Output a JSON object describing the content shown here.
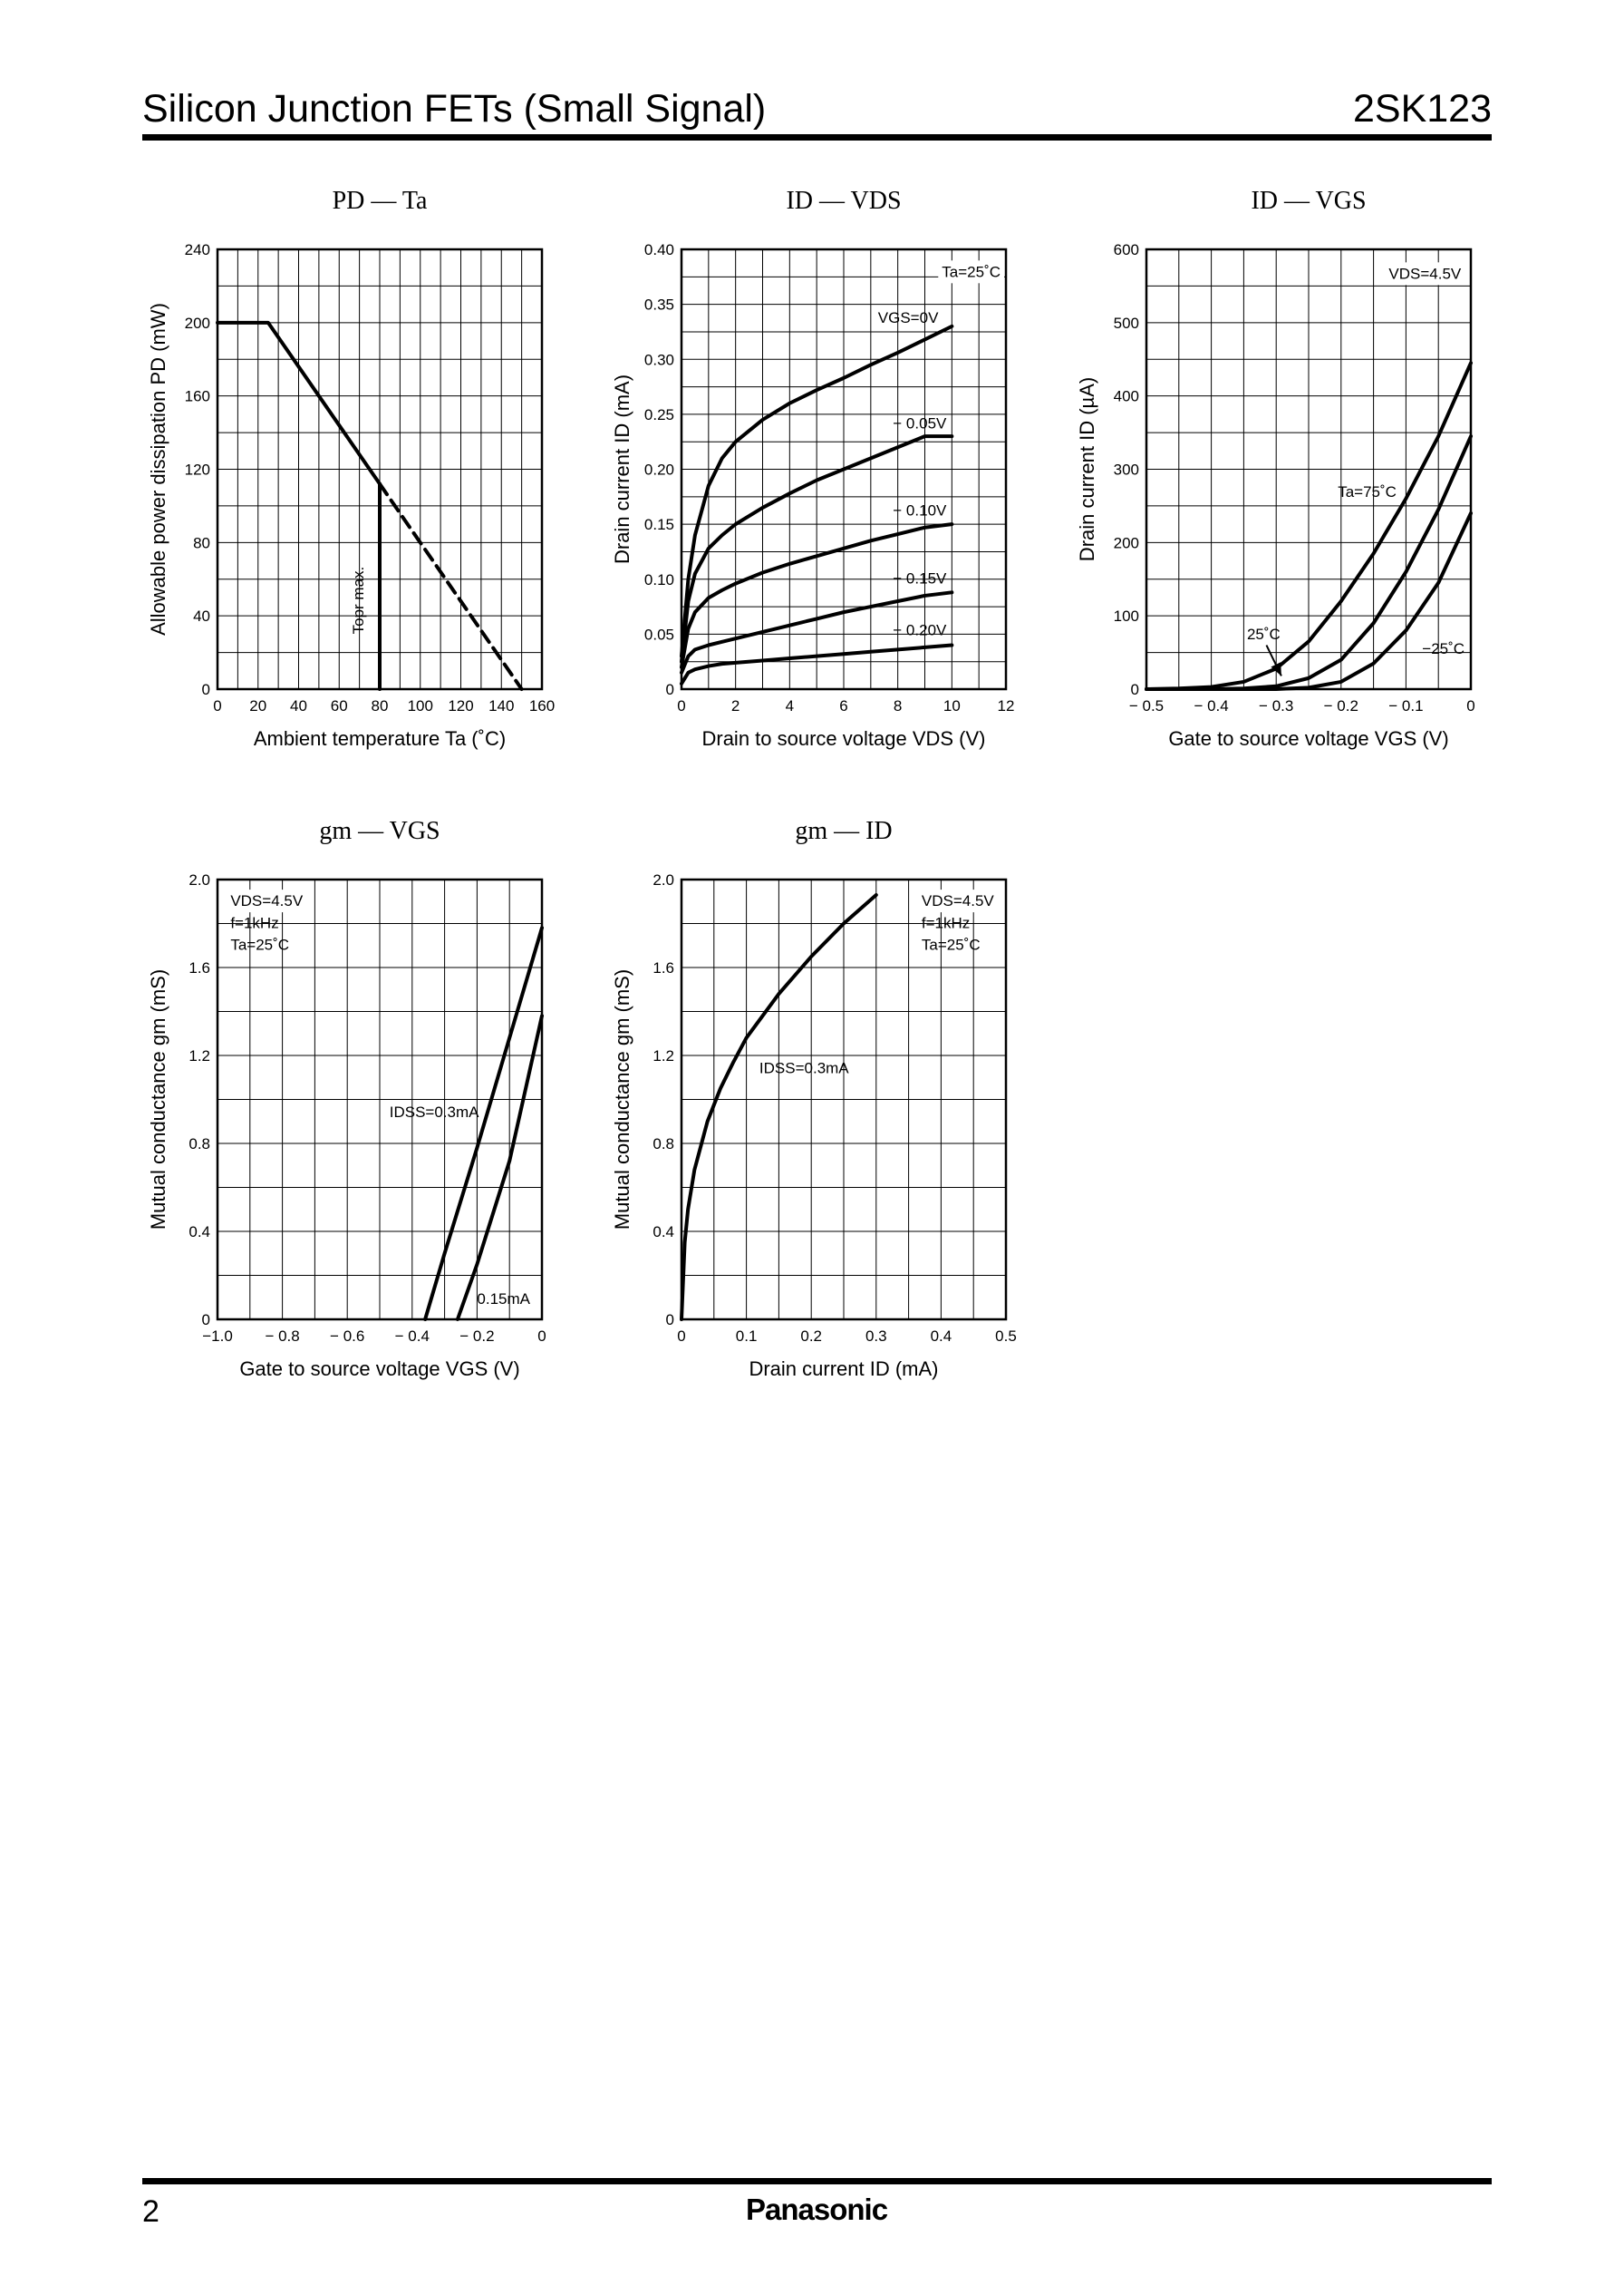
{
  "header": {
    "title": "Silicon Junction FETs (Small Signal)",
    "part_number": "2SK123"
  },
  "footer": {
    "page_number": "2",
    "brand": "Panasonic"
  },
  "chart_data": [
    {
      "type": "line",
      "title": "PD — Ta",
      "xlabel": "Ambient temperature   Ta   (˚C)",
      "ylabel": "Allowable power dissipation   PD   (mW)",
      "xlim": [
        0,
        160
      ],
      "ylim": [
        0,
        240
      ],
      "xticks": [
        0,
        20,
        40,
        60,
        80,
        100,
        120,
        140,
        160
      ],
      "yticks": [
        0,
        40,
        80,
        120,
        160,
        200,
        240
      ],
      "grid_x": [
        10,
        20,
        30,
        40,
        50,
        60,
        70,
        80,
        90,
        100,
        110,
        120,
        130,
        140,
        150
      ],
      "grid_y": [
        20,
        40,
        60,
        80,
        100,
        120,
        140,
        160,
        180,
        200,
        220
      ],
      "series": [
        {
          "style": "solid",
          "x": [
            0,
            25,
            80
          ],
          "y": [
            200,
            200,
            112
          ]
        },
        {
          "style": "dashed",
          "x": [
            80,
            150
          ],
          "y": [
            112,
            0
          ]
        },
        {
          "style": "solid",
          "x": [
            80,
            80
          ],
          "y": [
            112,
            0
          ]
        }
      ],
      "annotations": [
        {
          "text": "Topr max.",
          "x": 72,
          "y": 30,
          "rotate": -90
        }
      ],
      "grid": true
    },
    {
      "type": "line",
      "title": "ID — VDS",
      "xlabel": "Drain to source voltage   VDS   (V)",
      "ylabel": "Drain current   ID   (mA)",
      "xlim": [
        0,
        12
      ],
      "ylim": [
        0,
        0.4
      ],
      "xticks": [
        0,
        2,
        4,
        6,
        8,
        10,
        12
      ],
      "yticks": [
        0,
        0.05,
        0.1,
        0.15,
        0.2,
        0.25,
        0.3,
        0.35,
        0.4
      ],
      "ytick_labels": [
        "0",
        "0.05",
        "0.10",
        "0.15",
        "0.20",
        "0.25",
        "0.30",
        "0.35",
        "0.40"
      ],
      "grid_x": [
        1,
        2,
        3,
        4,
        5,
        6,
        7,
        8,
        9,
        10,
        11
      ],
      "grid_y": [
        0.025,
        0.05,
        0.075,
        0.1,
        0.125,
        0.15,
        0.175,
        0.2,
        0.225,
        0.25,
        0.275,
        0.3,
        0.325,
        0.35,
        0.375
      ],
      "series": [
        {
          "name": "VGS=0V",
          "x": [
            0,
            0.25,
            0.5,
            1,
            1.5,
            2,
            3,
            4,
            5,
            6,
            7,
            8,
            9,
            10
          ],
          "y": [
            0.03,
            0.1,
            0.14,
            0.185,
            0.21,
            0.225,
            0.245,
            0.26,
            0.272,
            0.283,
            0.295,
            0.306,
            0.318,
            0.33
          ]
        },
        {
          "name": "− 0.05V",
          "x": [
            0,
            0.25,
            0.5,
            1,
            1.5,
            2,
            3,
            4,
            5,
            6,
            7,
            8,
            9,
            10
          ],
          "y": [
            0.025,
            0.08,
            0.105,
            0.128,
            0.14,
            0.15,
            0.165,
            0.178,
            0.19,
            0.2,
            0.21,
            0.22,
            0.23,
            0.23
          ]
        },
        {
          "name": "− 0.10V",
          "x": [
            0,
            0.25,
            0.5,
            1,
            1.5,
            2,
            3,
            4,
            5,
            6,
            7,
            8,
            9,
            10
          ],
          "y": [
            0.02,
            0.055,
            0.07,
            0.083,
            0.09,
            0.096,
            0.106,
            0.114,
            0.121,
            0.128,
            0.135,
            0.141,
            0.147,
            0.15
          ]
        },
        {
          "name": "− 0.15V",
          "x": [
            0,
            0.25,
            0.5,
            1,
            1.5,
            2,
            3,
            4,
            5,
            6,
            7,
            8,
            9,
            10
          ],
          "y": [
            0.015,
            0.03,
            0.036,
            0.04,
            0.043,
            0.046,
            0.052,
            0.058,
            0.064,
            0.07,
            0.075,
            0.08,
            0.085,
            0.088
          ]
        },
        {
          "name": "− 0.20V",
          "x": [
            0,
            0.25,
            0.5,
            1,
            1.5,
            2,
            3,
            4,
            5,
            6,
            7,
            8,
            9,
            10
          ],
          "y": [
            0.005,
            0.015,
            0.018,
            0.021,
            0.023,
            0.024,
            0.026,
            0.028,
            0.03,
            0.032,
            0.034,
            0.036,
            0.038,
            0.04
          ]
        }
      ],
      "annotations": [
        {
          "text": "Ta=25˚C",
          "x": 11.8,
          "y": 0.375,
          "anchor": "end",
          "box": true
        },
        {
          "text": "VGS=0V",
          "x": 9.5,
          "y": 0.333,
          "anchor": "end"
        },
        {
          "text": "− 0.05V",
          "x": 9.8,
          "y": 0.237,
          "anchor": "end"
        },
        {
          "text": "− 0.10V",
          "x": 9.8,
          "y": 0.158,
          "anchor": "end"
        },
        {
          "text": "− 0.15V",
          "x": 9.8,
          "y": 0.096,
          "anchor": "end"
        },
        {
          "text": "− 0.20V",
          "x": 9.8,
          "y": 0.049,
          "anchor": "end"
        }
      ],
      "grid": true
    },
    {
      "type": "line",
      "title": "ID — VGS",
      "xlabel": "Gate to source voltage   VGS   (V)",
      "ylabel": "Drain current   ID   (µA)",
      "xlim": [
        -0.5,
        0
      ],
      "ylim": [
        0,
        600
      ],
      "xticks": [
        -0.5,
        -0.4,
        -0.3,
        -0.2,
        -0.1,
        0
      ],
      "xtick_labels": [
        "− 0.5",
        "− 0.4",
        "− 0.3",
        "− 0.2",
        "− 0.1",
        "0"
      ],
      "yticks": [
        0,
        100,
        200,
        300,
        400,
        500,
        600
      ],
      "grid_x": [
        -0.45,
        -0.4,
        -0.35,
        -0.3,
        -0.25,
        -0.2,
        -0.15,
        -0.1,
        -0.05
      ],
      "grid_y": [
        50,
        100,
        150,
        200,
        250,
        300,
        350,
        400,
        450,
        500,
        550
      ],
      "series": [
        {
          "name": "Ta=75˚C",
          "x": [
            -0.5,
            -0.45,
            -0.4,
            -0.35,
            -0.3,
            -0.25,
            -0.2,
            -0.15,
            -0.1,
            -0.05,
            0
          ],
          "y": [
            0,
            1,
            3,
            10,
            28,
            65,
            120,
            185,
            260,
            345,
            445
          ]
        },
        {
          "name": "25˚C",
          "x": [
            -0.5,
            -0.4,
            -0.35,
            -0.3,
            -0.25,
            -0.2,
            -0.15,
            -0.1,
            -0.05,
            0
          ],
          "y": [
            0,
            0,
            1,
            4,
            15,
            40,
            90,
            160,
            245,
            345
          ]
        },
        {
          "name": "−25˚C",
          "x": [
            -0.5,
            -0.35,
            -0.3,
            -0.25,
            -0.2,
            -0.15,
            -0.1,
            -0.05,
            0
          ],
          "y": [
            0,
            0,
            0,
            2,
            10,
            35,
            80,
            145,
            240
          ]
        }
      ],
      "annotations": [
        {
          "text": "VDS=4.5V",
          "x": -0.015,
          "y": 560,
          "anchor": "end",
          "box": true
        },
        {
          "text": "Ta=75˚C",
          "x": -0.205,
          "y": 262,
          "anchor": "start"
        },
        {
          "text": "25˚C",
          "x": -0.345,
          "y": 68,
          "anchor": "start"
        },
        {
          "text": "−25˚C",
          "x": -0.075,
          "y": 48,
          "anchor": "start"
        }
      ],
      "arrow": {
        "from": [
          -0.315,
          60
        ],
        "to": [
          -0.292,
          18
        ]
      },
      "grid": true
    },
    {
      "type": "line",
      "title": "gm — VGS",
      "xlabel": "Gate to source voltage   VGS   (V)",
      "ylabel": "Mutual conductance   gm   (mS)",
      "xlim": [
        -1.0,
        0
      ],
      "ylim": [
        0,
        2.0
      ],
      "xticks": [
        -1.0,
        -0.8,
        -0.6,
        -0.4,
        -0.2,
        0
      ],
      "xtick_labels": [
        "−1.0",
        "− 0.8",
        "− 0.6",
        "− 0.4",
        "− 0.2",
        "0"
      ],
      "yticks": [
        0,
        0.4,
        0.8,
        1.2,
        1.6,
        2.0
      ],
      "ytick_labels": [
        "0",
        "0.4",
        "0.8",
        "1.2",
        "1.6",
        "2.0"
      ],
      "grid_x": [
        -0.9,
        -0.8,
        -0.7,
        -0.6,
        -0.5,
        -0.4,
        -0.3,
        -0.2,
        -0.1
      ],
      "grid_y": [
        0.2,
        0.4,
        0.6,
        0.8,
        1.0,
        1.2,
        1.4,
        1.6,
        1.8
      ],
      "series": [
        {
          "name": "IDSS=0.3mA",
          "x": [
            -0.36,
            -0.3,
            -0.2,
            -0.1,
            0
          ],
          "y": [
            0,
            0.3,
            0.78,
            1.28,
            1.78
          ]
        },
        {
          "name": "0.15mA",
          "x": [
            -0.26,
            -0.2,
            -0.1,
            0
          ],
          "y": [
            0,
            0.25,
            0.72,
            1.38
          ]
        }
      ],
      "annotations": [
        {
          "text": "VDS=4.5V",
          "x": -0.96,
          "y": 1.88,
          "anchor": "start",
          "box": true
        },
        {
          "text": "f=1kHz",
          "x": -0.96,
          "y": 1.78,
          "anchor": "start"
        },
        {
          "text": "Ta=25˚C",
          "x": -0.96,
          "y": 1.68,
          "anchor": "start"
        },
        {
          "text": "IDSS=0.3mA",
          "x": -0.47,
          "y": 0.92,
          "anchor": "start"
        },
        {
          "text": "0.15mA",
          "x": -0.2,
          "y": 0.07,
          "anchor": "start"
        }
      ],
      "grid": true
    },
    {
      "type": "line",
      "title": "gm — ID",
      "xlabel": "Drain current   ID   (mA)",
      "ylabel": "Mutual conductance   gm   (mS)",
      "xlim": [
        0,
        0.5
      ],
      "ylim": [
        0,
        2.0
      ],
      "xticks": [
        0,
        0.1,
        0.2,
        0.3,
        0.4,
        0.5
      ],
      "yticks": [
        0,
        0.4,
        0.8,
        1.2,
        1.6,
        2.0
      ],
      "ytick_labels": [
        "0",
        "0.4",
        "0.8",
        "1.2",
        "1.6",
        "2.0"
      ],
      "grid_x": [
        0.05,
        0.1,
        0.15,
        0.2,
        0.25,
        0.3,
        0.35,
        0.4,
        0.45
      ],
      "grid_y": [
        0.2,
        0.4,
        0.6,
        0.8,
        1.0,
        1.2,
        1.4,
        1.6,
        1.8
      ],
      "series": [
        {
          "name": "IDSS=0.3mA",
          "x": [
            0,
            0.005,
            0.01,
            0.02,
            0.04,
            0.06,
            0.08,
            0.1,
            0.15,
            0.2,
            0.25,
            0.3
          ],
          "y": [
            0,
            0.35,
            0.5,
            0.68,
            0.9,
            1.05,
            1.17,
            1.28,
            1.48,
            1.65,
            1.8,
            1.93
          ]
        }
      ],
      "annotations": [
        {
          "text": "VDS=4.5V",
          "x": 0.37,
          "y": 1.88,
          "anchor": "start",
          "box": true
        },
        {
          "text": "f=1kHz",
          "x": 0.37,
          "y": 1.78,
          "anchor": "start"
        },
        {
          "text": "Ta=25˚C",
          "x": 0.37,
          "y": 1.68,
          "anchor": "start"
        },
        {
          "text": "IDSS=0.3mA",
          "x": 0.12,
          "y": 1.12,
          "anchor": "start"
        }
      ],
      "grid": true
    }
  ]
}
